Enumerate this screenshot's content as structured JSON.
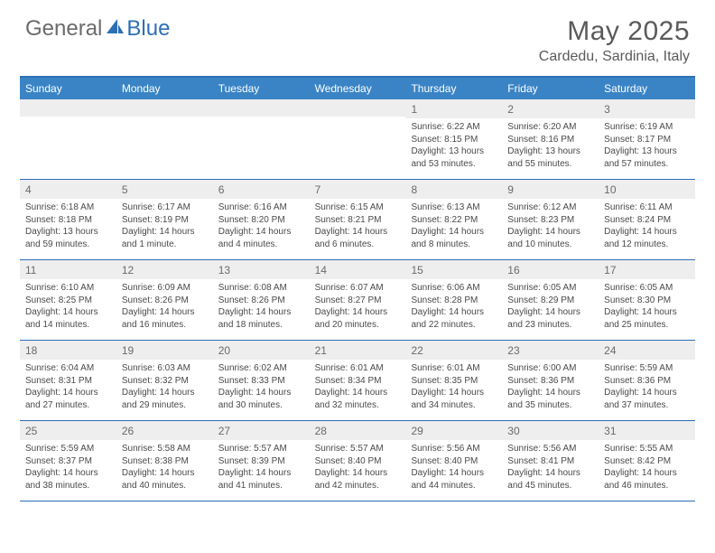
{
  "logo": {
    "text_general": "General",
    "text_blue": "Blue"
  },
  "header": {
    "month_title": "May 2025",
    "location": "Cardedu, Sardinia, Italy"
  },
  "colors": {
    "header_bar": "#3a84c6",
    "border": "#2d6fb5",
    "daynum_bg": "#eeeeee",
    "text": "#4a4a4a",
    "title": "#5a5a5a"
  },
  "weekdays": [
    "Sunday",
    "Monday",
    "Tuesday",
    "Wednesday",
    "Thursday",
    "Friday",
    "Saturday"
  ],
  "weeks": [
    [
      {
        "n": "",
        "sr": "",
        "ss": "",
        "dl": ""
      },
      {
        "n": "",
        "sr": "",
        "ss": "",
        "dl": ""
      },
      {
        "n": "",
        "sr": "",
        "ss": "",
        "dl": ""
      },
      {
        "n": "",
        "sr": "",
        "ss": "",
        "dl": ""
      },
      {
        "n": "1",
        "sr": "Sunrise: 6:22 AM",
        "ss": "Sunset: 8:15 PM",
        "dl": "Daylight: 13 hours and 53 minutes."
      },
      {
        "n": "2",
        "sr": "Sunrise: 6:20 AM",
        "ss": "Sunset: 8:16 PM",
        "dl": "Daylight: 13 hours and 55 minutes."
      },
      {
        "n": "3",
        "sr": "Sunrise: 6:19 AM",
        "ss": "Sunset: 8:17 PM",
        "dl": "Daylight: 13 hours and 57 minutes."
      }
    ],
    [
      {
        "n": "4",
        "sr": "Sunrise: 6:18 AM",
        "ss": "Sunset: 8:18 PM",
        "dl": "Daylight: 13 hours and 59 minutes."
      },
      {
        "n": "5",
        "sr": "Sunrise: 6:17 AM",
        "ss": "Sunset: 8:19 PM",
        "dl": "Daylight: 14 hours and 1 minute."
      },
      {
        "n": "6",
        "sr": "Sunrise: 6:16 AM",
        "ss": "Sunset: 8:20 PM",
        "dl": "Daylight: 14 hours and 4 minutes."
      },
      {
        "n": "7",
        "sr": "Sunrise: 6:15 AM",
        "ss": "Sunset: 8:21 PM",
        "dl": "Daylight: 14 hours and 6 minutes."
      },
      {
        "n": "8",
        "sr": "Sunrise: 6:13 AM",
        "ss": "Sunset: 8:22 PM",
        "dl": "Daylight: 14 hours and 8 minutes."
      },
      {
        "n": "9",
        "sr": "Sunrise: 6:12 AM",
        "ss": "Sunset: 8:23 PM",
        "dl": "Daylight: 14 hours and 10 minutes."
      },
      {
        "n": "10",
        "sr": "Sunrise: 6:11 AM",
        "ss": "Sunset: 8:24 PM",
        "dl": "Daylight: 14 hours and 12 minutes."
      }
    ],
    [
      {
        "n": "11",
        "sr": "Sunrise: 6:10 AM",
        "ss": "Sunset: 8:25 PM",
        "dl": "Daylight: 14 hours and 14 minutes."
      },
      {
        "n": "12",
        "sr": "Sunrise: 6:09 AM",
        "ss": "Sunset: 8:26 PM",
        "dl": "Daylight: 14 hours and 16 minutes."
      },
      {
        "n": "13",
        "sr": "Sunrise: 6:08 AM",
        "ss": "Sunset: 8:26 PM",
        "dl": "Daylight: 14 hours and 18 minutes."
      },
      {
        "n": "14",
        "sr": "Sunrise: 6:07 AM",
        "ss": "Sunset: 8:27 PM",
        "dl": "Daylight: 14 hours and 20 minutes."
      },
      {
        "n": "15",
        "sr": "Sunrise: 6:06 AM",
        "ss": "Sunset: 8:28 PM",
        "dl": "Daylight: 14 hours and 22 minutes."
      },
      {
        "n": "16",
        "sr": "Sunrise: 6:05 AM",
        "ss": "Sunset: 8:29 PM",
        "dl": "Daylight: 14 hours and 23 minutes."
      },
      {
        "n": "17",
        "sr": "Sunrise: 6:05 AM",
        "ss": "Sunset: 8:30 PM",
        "dl": "Daylight: 14 hours and 25 minutes."
      }
    ],
    [
      {
        "n": "18",
        "sr": "Sunrise: 6:04 AM",
        "ss": "Sunset: 8:31 PM",
        "dl": "Daylight: 14 hours and 27 minutes."
      },
      {
        "n": "19",
        "sr": "Sunrise: 6:03 AM",
        "ss": "Sunset: 8:32 PM",
        "dl": "Daylight: 14 hours and 29 minutes."
      },
      {
        "n": "20",
        "sr": "Sunrise: 6:02 AM",
        "ss": "Sunset: 8:33 PM",
        "dl": "Daylight: 14 hours and 30 minutes."
      },
      {
        "n": "21",
        "sr": "Sunrise: 6:01 AM",
        "ss": "Sunset: 8:34 PM",
        "dl": "Daylight: 14 hours and 32 minutes."
      },
      {
        "n": "22",
        "sr": "Sunrise: 6:01 AM",
        "ss": "Sunset: 8:35 PM",
        "dl": "Daylight: 14 hours and 34 minutes."
      },
      {
        "n": "23",
        "sr": "Sunrise: 6:00 AM",
        "ss": "Sunset: 8:36 PM",
        "dl": "Daylight: 14 hours and 35 minutes."
      },
      {
        "n": "24",
        "sr": "Sunrise: 5:59 AM",
        "ss": "Sunset: 8:36 PM",
        "dl": "Daylight: 14 hours and 37 minutes."
      }
    ],
    [
      {
        "n": "25",
        "sr": "Sunrise: 5:59 AM",
        "ss": "Sunset: 8:37 PM",
        "dl": "Daylight: 14 hours and 38 minutes."
      },
      {
        "n": "26",
        "sr": "Sunrise: 5:58 AM",
        "ss": "Sunset: 8:38 PM",
        "dl": "Daylight: 14 hours and 40 minutes."
      },
      {
        "n": "27",
        "sr": "Sunrise: 5:57 AM",
        "ss": "Sunset: 8:39 PM",
        "dl": "Daylight: 14 hours and 41 minutes."
      },
      {
        "n": "28",
        "sr": "Sunrise: 5:57 AM",
        "ss": "Sunset: 8:40 PM",
        "dl": "Daylight: 14 hours and 42 minutes."
      },
      {
        "n": "29",
        "sr": "Sunrise: 5:56 AM",
        "ss": "Sunset: 8:40 PM",
        "dl": "Daylight: 14 hours and 44 minutes."
      },
      {
        "n": "30",
        "sr": "Sunrise: 5:56 AM",
        "ss": "Sunset: 8:41 PM",
        "dl": "Daylight: 14 hours and 45 minutes."
      },
      {
        "n": "31",
        "sr": "Sunrise: 5:55 AM",
        "ss": "Sunset: 8:42 PM",
        "dl": "Daylight: 14 hours and 46 minutes."
      }
    ]
  ]
}
